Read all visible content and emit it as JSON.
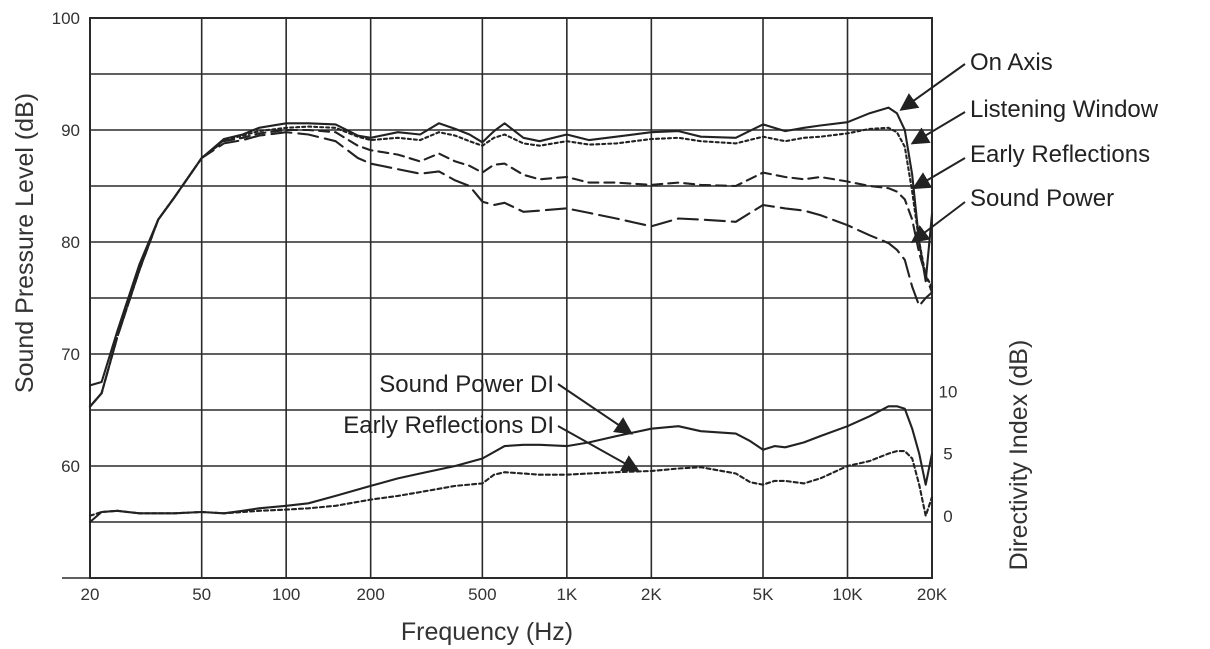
{
  "chart_data": {
    "type": "line",
    "title": "",
    "xlabel": "Frequency (Hz)",
    "ylabel": "Sound Pressure Level (dB)",
    "y2label": "Directivity Index (dB)",
    "x_scale": "log",
    "xlim": [
      20,
      20000
    ],
    "ylim": [
      50,
      100
    ],
    "y2lim": [
      -5,
      40
    ],
    "grid": true,
    "x_ticks": [
      {
        "v": 20,
        "label": "20"
      },
      {
        "v": 50,
        "label": "50"
      },
      {
        "v": 100,
        "label": "100"
      },
      {
        "v": 200,
        "label": "200"
      },
      {
        "v": 500,
        "label": "500"
      },
      {
        "v": 1000,
        "label": "1K"
      },
      {
        "v": 2000,
        "label": "2K"
      },
      {
        "v": 5000,
        "label": "5K"
      },
      {
        "v": 10000,
        "label": "10K"
      },
      {
        "v": 20000,
        "label": "20K"
      }
    ],
    "y_ticks": [
      {
        "v": 60,
        "label": "60"
      },
      {
        "v": 70,
        "label": "70"
      },
      {
        "v": 80,
        "label": "80"
      },
      {
        "v": 90,
        "label": "90"
      },
      {
        "v": 100,
        "label": "100"
      }
    ],
    "y2_ticks": [
      {
        "v": 0,
        "label": "0"
      },
      {
        "v": 5,
        "label": "5"
      },
      {
        "v": 10,
        "label": "10"
      }
    ],
    "series": [
      {
        "name": "On Axis",
        "axis": "left",
        "dash": "solid",
        "x": [
          20,
          22,
          25,
          30,
          35,
          40,
          50,
          60,
          70,
          80,
          100,
          120,
          150,
          180,
          200,
          250,
          300,
          350,
          400,
          450,
          500,
          550,
          600,
          700,
          800,
          1000,
          1200,
          1500,
          2000,
          2500,
          3000,
          4000,
          5000,
          6000,
          7000,
          8000,
          10000,
          12000,
          14000,
          15000,
          16000,
          17000,
          18000,
          19000,
          20000
        ],
        "y": [
          67.2,
          67.5,
          72,
          78,
          82,
          84,
          87.5,
          89.2,
          89.6,
          90.2,
          90.6,
          90.6,
          90.5,
          89.5,
          89.3,
          89.8,
          89.6,
          90.6,
          90.1,
          89.6,
          88.9,
          89.9,
          90.6,
          89.3,
          89.0,
          89.6,
          89.1,
          89.4,
          89.8,
          89.9,
          89.4,
          89.3,
          90.5,
          89.9,
          90.2,
          90.4,
          90.7,
          91.5,
          92.0,
          91.5,
          90.0,
          86.0,
          80.0,
          76.5,
          82.5
        ]
      },
      {
        "name": "Listening Window",
        "axis": "left",
        "dash": "3 3",
        "x": [
          20,
          22,
          25,
          30,
          35,
          40,
          50,
          60,
          70,
          80,
          100,
          120,
          150,
          180,
          200,
          250,
          300,
          350,
          400,
          450,
          500,
          550,
          600,
          700,
          800,
          1000,
          1200,
          1500,
          2000,
          2500,
          3000,
          4000,
          5000,
          6000,
          7000,
          8000,
          10000,
          12000,
          14000,
          15000,
          16000,
          17000,
          18000,
          19000,
          20000
        ],
        "y": [
          65.3,
          66.5,
          71.5,
          77.5,
          82,
          84,
          87.5,
          89.1,
          89.5,
          89.9,
          90.2,
          90.3,
          90.2,
          89.4,
          89.1,
          89.3,
          89.1,
          89.8,
          89.5,
          89.0,
          88.6,
          89.3,
          89.6,
          88.8,
          88.6,
          89.0,
          88.7,
          88.8,
          89.2,
          89.3,
          89.0,
          88.8,
          89.4,
          89.0,
          89.3,
          89.4,
          89.7,
          90.1,
          90.2,
          89.8,
          88.5,
          84.5,
          80.0,
          77.0,
          76.0
        ]
      },
      {
        "name": "Early Reflections",
        "axis": "left",
        "dash": "10 6",
        "x": [
          20,
          22,
          25,
          30,
          35,
          40,
          50,
          60,
          70,
          80,
          100,
          120,
          150,
          180,
          200,
          250,
          300,
          350,
          400,
          450,
          500,
          550,
          600,
          700,
          800,
          1000,
          1200,
          1500,
          2000,
          2500,
          3000,
          4000,
          5000,
          6000,
          7000,
          8000,
          10000,
          12000,
          14000,
          15000,
          16000,
          17000,
          18000,
          19000,
          20000
        ],
        "y": [
          65.3,
          66.5,
          71.5,
          77.5,
          82,
          84,
          87.5,
          89.0,
          89.3,
          89.7,
          90.0,
          90.0,
          89.8,
          88.6,
          88.2,
          87.8,
          87.2,
          87.9,
          87.2,
          86.8,
          86.2,
          86.9,
          87.0,
          86.0,
          85.6,
          85.8,
          85.3,
          85.3,
          85.1,
          85.3,
          85.1,
          85.0,
          86.2,
          85.8,
          85.6,
          85.8,
          85.4,
          85.0,
          84.8,
          84.5,
          83.8,
          82.0,
          79.0,
          77.0,
          75.5
        ]
      },
      {
        "name": "Sound Power",
        "axis": "left",
        "dash": "20 7",
        "x": [
          20,
          22,
          25,
          30,
          35,
          40,
          50,
          60,
          70,
          80,
          100,
          120,
          150,
          180,
          200,
          250,
          300,
          350,
          400,
          450,
          500,
          550,
          600,
          700,
          800,
          1000,
          1200,
          1500,
          2000,
          2500,
          3000,
          4000,
          5000,
          6000,
          7000,
          8000,
          10000,
          12000,
          14000,
          15000,
          16000,
          17000,
          18000,
          19000,
          20000
        ],
        "y": [
          65.3,
          66.5,
          71.5,
          77.5,
          82,
          84,
          87.5,
          88.8,
          89.1,
          89.5,
          89.8,
          89.6,
          89.0,
          87.5,
          87.0,
          86.5,
          86.1,
          86.3,
          85.5,
          85.0,
          83.6,
          83.3,
          83.5,
          82.7,
          82.8,
          83.0,
          82.6,
          82.1,
          81.4,
          82.1,
          82.0,
          81.8,
          83.3,
          83.0,
          82.8,
          82.4,
          81.5,
          80.6,
          79.9,
          79.3,
          78.4,
          76.0,
          74.3,
          75.0,
          75.5
        ]
      },
      {
        "name": "Sound Power DI",
        "axis": "right",
        "dash": "solid",
        "x": [
          20,
          22,
          25,
          30,
          40,
          50,
          60,
          70,
          80,
          100,
          120,
          150,
          200,
          250,
          300,
          400,
          500,
          600,
          700,
          800,
          1000,
          1200,
          1500,
          2000,
          2500,
          3000,
          4000,
          4500,
          5000,
          5500,
          6000,
          7000,
          8000,
          10000,
          12000,
          14000,
          15000,
          16000,
          17000,
          18000,
          19000,
          20000
        ],
        "y": [
          -0.5,
          0.3,
          0.4,
          0.2,
          0.2,
          0.3,
          0.2,
          0.4,
          0.6,
          0.8,
          1.0,
          1.6,
          2.4,
          3.0,
          3.4,
          4.0,
          4.6,
          5.6,
          5.7,
          5.7,
          5.6,
          5.9,
          6.4,
          7.0,
          7.2,
          6.8,
          6.6,
          6.0,
          5.3,
          5.6,
          5.5,
          5.9,
          6.4,
          7.2,
          8.0,
          8.8,
          8.8,
          8.6,
          7.0,
          5.0,
          2.5,
          5.0
        ]
      },
      {
        "name": "Early Reflections DI",
        "axis": "right",
        "dash": "4 3",
        "x": [
          20,
          22,
          25,
          30,
          40,
          50,
          60,
          70,
          80,
          100,
          120,
          150,
          200,
          250,
          300,
          400,
          500,
          550,
          600,
          700,
          800,
          1000,
          1200,
          1500,
          2000,
          2500,
          3000,
          4000,
          4500,
          5000,
          5500,
          6000,
          7000,
          8000,
          10000,
          12000,
          14000,
          15000,
          16000,
          17000,
          18000,
          19000,
          20000
        ],
        "y": [
          0.0,
          0.3,
          0.4,
          0.2,
          0.2,
          0.3,
          0.2,
          0.3,
          0.4,
          0.5,
          0.6,
          0.8,
          1.3,
          1.6,
          1.9,
          2.4,
          2.6,
          3.3,
          3.5,
          3.4,
          3.3,
          3.3,
          3.4,
          3.5,
          3.6,
          3.8,
          3.9,
          3.4,
          2.7,
          2.5,
          2.8,
          2.8,
          2.6,
          3.0,
          4.0,
          4.4,
          5.0,
          5.2,
          5.2,
          4.6,
          2.5,
          0.0,
          1.5
        ]
      }
    ],
    "annotations": [
      {
        "text": "On Axis",
        "series": "On Axis",
        "point_x": 15500,
        "point_y": 91.8
      },
      {
        "text": "Listening Window",
        "series": "Listening Window",
        "point_x": 17000,
        "point_y": 88.8
      },
      {
        "text": "Early Reflections",
        "series": "Early Reflections",
        "point_x": 17200,
        "point_y": 84.8
      },
      {
        "text": "Sound Power",
        "series": "Sound Power",
        "point_x": 17000,
        "point_y": 80.0
      },
      {
        "text": "Sound Power DI",
        "series": "Sound Power DI",
        "point_x": 1700,
        "point_y": 6.6
      },
      {
        "text": "Early Reflections DI",
        "series": "Early Reflections DI",
        "point_x": 1800,
        "point_y": 3.6
      }
    ]
  }
}
